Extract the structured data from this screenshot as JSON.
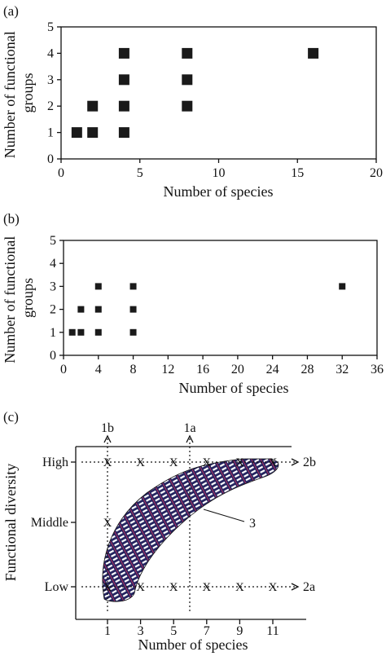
{
  "chart_data": [
    {
      "panel": "(a)",
      "type": "scatter",
      "xlabel": "Number of species",
      "ylabel": "Number of functional groups",
      "xlim": [
        0,
        20
      ],
      "ylim": [
        0,
        5
      ],
      "xticks": [
        0,
        5,
        10,
        15,
        20
      ],
      "yticks": [
        0,
        1,
        2,
        3,
        4,
        5
      ],
      "points": [
        {
          "x": 1,
          "y": 1
        },
        {
          "x": 2,
          "y": 1
        },
        {
          "x": 2,
          "y": 2
        },
        {
          "x": 4,
          "y": 1
        },
        {
          "x": 4,
          "y": 2
        },
        {
          "x": 4,
          "y": 3
        },
        {
          "x": 4,
          "y": 4
        },
        {
          "x": 8,
          "y": 2
        },
        {
          "x": 8,
          "y": 3
        },
        {
          "x": 8,
          "y": 4
        },
        {
          "x": 16,
          "y": 4
        }
      ],
      "marker_color": "#1a1a1a"
    },
    {
      "panel": "(b)",
      "type": "scatter",
      "xlabel": "Number of species",
      "ylabel": "Number of functional groups",
      "xlim": [
        0,
        36
      ],
      "ylim": [
        0,
        5
      ],
      "xticks": [
        0,
        4,
        8,
        12,
        16,
        20,
        24,
        28,
        32,
        36
      ],
      "yticks": [
        0,
        1,
        2,
        3,
        4,
        5
      ],
      "points": [
        {
          "x": 1,
          "y": 1
        },
        {
          "x": 2,
          "y": 1
        },
        {
          "x": 2,
          "y": 2
        },
        {
          "x": 4,
          "y": 1
        },
        {
          "x": 4,
          "y": 2
        },
        {
          "x": 4,
          "y": 3
        },
        {
          "x": 8,
          "y": 1
        },
        {
          "x": 8,
          "y": 2
        },
        {
          "x": 8,
          "y": 3
        },
        {
          "x": 32,
          "y": 3
        }
      ],
      "marker_color": "#1a1a1a"
    },
    {
      "panel": "(c)",
      "type": "scatter",
      "xlabel": "Number of species",
      "ylabel": "Functional diversity",
      "xticks": [
        1,
        3,
        5,
        7,
        9,
        11
      ],
      "ylevels": [
        "Low",
        "Middle",
        "High"
      ],
      "marker": "X",
      "points": [
        {
          "x": 1,
          "y": "High"
        },
        {
          "x": 3,
          "y": "High"
        },
        {
          "x": 5,
          "y": "High"
        },
        {
          "x": 7,
          "y": "High"
        },
        {
          "x": 9,
          "y": "High"
        },
        {
          "x": 11,
          "y": "High"
        },
        {
          "x": 1,
          "y": "Middle"
        },
        {
          "x": 1,
          "y": "Low"
        },
        {
          "x": 3,
          "y": "Low"
        },
        {
          "x": 5,
          "y": "Low"
        },
        {
          "x": 7,
          "y": "Low"
        },
        {
          "x": 9,
          "y": "Low"
        },
        {
          "x": 11,
          "y": "Low"
        }
      ],
      "transects": [
        {
          "label": "1b",
          "x": 1,
          "direction": "vertical"
        },
        {
          "label": "1a",
          "x": 6,
          "direction": "vertical"
        },
        {
          "label": "2b",
          "y": "High",
          "direction": "horizontal"
        },
        {
          "label": "2a",
          "y": "Low",
          "direction": "horizontal"
        }
      ],
      "region_label": "3",
      "region_color": "#2a2a6e"
    }
  ]
}
